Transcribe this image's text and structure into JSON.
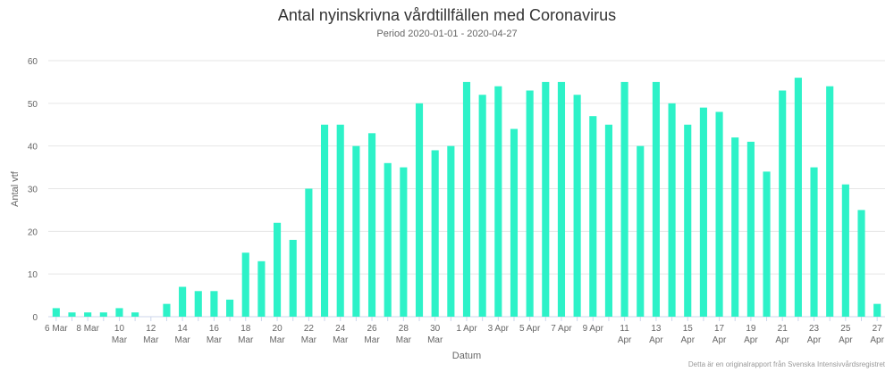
{
  "chart_data": {
    "type": "bar",
    "title": "Antal nyinskrivna vårdtillfällen med Coronavirus",
    "subtitle": "Period 2020-01-01 - 2020-04-27",
    "xlabel": "Datum",
    "ylabel": "Antal vtf",
    "ylim": [
      0,
      60
    ],
    "yticks": [
      0,
      10,
      20,
      30,
      40,
      50,
      60
    ],
    "grid": true,
    "bar_color": "#2df2c8",
    "categories": [
      "6 Mar",
      "7 Mar",
      "8 Mar",
      "9 Mar",
      "10 Mar",
      "11 Mar",
      "12 Mar",
      "13 Mar",
      "14 Mar",
      "15 Mar",
      "16 Mar",
      "17 Mar",
      "18 Mar",
      "19 Mar",
      "20 Mar",
      "21 Mar",
      "22 Mar",
      "23 Mar",
      "24 Mar",
      "25 Mar",
      "26 Mar",
      "27 Mar",
      "28 Mar",
      "29 Mar",
      "30 Mar",
      "31 Mar",
      "1 Apr",
      "2 Apr",
      "3 Apr",
      "4 Apr",
      "5 Apr",
      "6 Apr",
      "7 Apr",
      "8 Apr",
      "9 Apr",
      "10 Apr",
      "11 Apr",
      "12 Apr",
      "13 Apr",
      "14 Apr",
      "15 Apr",
      "16 Apr",
      "17 Apr",
      "18 Apr",
      "19 Apr",
      "20 Apr",
      "21 Apr",
      "22 Apr",
      "23 Apr",
      "24 Apr",
      "25 Apr",
      "26 Apr",
      "27 Apr"
    ],
    "values": [
      2,
      1,
      1,
      1,
      2,
      1,
      0,
      3,
      7,
      6,
      6,
      4,
      15,
      13,
      22,
      18,
      30,
      45,
      45,
      40,
      43,
      36,
      35,
      50,
      39,
      40,
      55,
      52,
      54,
      44,
      53,
      55,
      55,
      52,
      47,
      45,
      55,
      40,
      55,
      50,
      45,
      49,
      48,
      42,
      41,
      34,
      53,
      56,
      35,
      54,
      31,
      25,
      3
    ],
    "xtick_labels": [
      [
        "6 Mar"
      ],
      [],
      [
        "8 Mar"
      ],
      [],
      [
        "10",
        "Mar"
      ],
      [],
      [
        "12",
        "Mar"
      ],
      [],
      [
        "14",
        "Mar"
      ],
      [],
      [
        "16",
        "Mar"
      ],
      [],
      [
        "18",
        "Mar"
      ],
      [],
      [
        "20",
        "Mar"
      ],
      [],
      [
        "22",
        "Mar"
      ],
      [],
      [
        "24",
        "Mar"
      ],
      [],
      [
        "26",
        "Mar"
      ],
      [],
      [
        "28",
        "Mar"
      ],
      [],
      [
        "30",
        "Mar"
      ],
      [],
      [
        "1 Apr"
      ],
      [],
      [
        "3 Apr"
      ],
      [],
      [
        "5 Apr"
      ],
      [],
      [
        "7 Apr"
      ],
      [],
      [
        "9 Apr"
      ],
      [],
      [
        "11",
        "Apr"
      ],
      [],
      [
        "13",
        "Apr"
      ],
      [],
      [
        "15",
        "Apr"
      ],
      [],
      [
        "17",
        "Apr"
      ],
      [],
      [
        "19",
        "Apr"
      ],
      [],
      [
        "21",
        "Apr"
      ],
      [],
      [
        "23",
        "Apr"
      ],
      [],
      [
        "25",
        "Apr"
      ],
      [],
      [
        "27",
        "Apr"
      ]
    ]
  },
  "credits": "Detta är en originalrapport från Svenska Intensivvårdsregistret"
}
